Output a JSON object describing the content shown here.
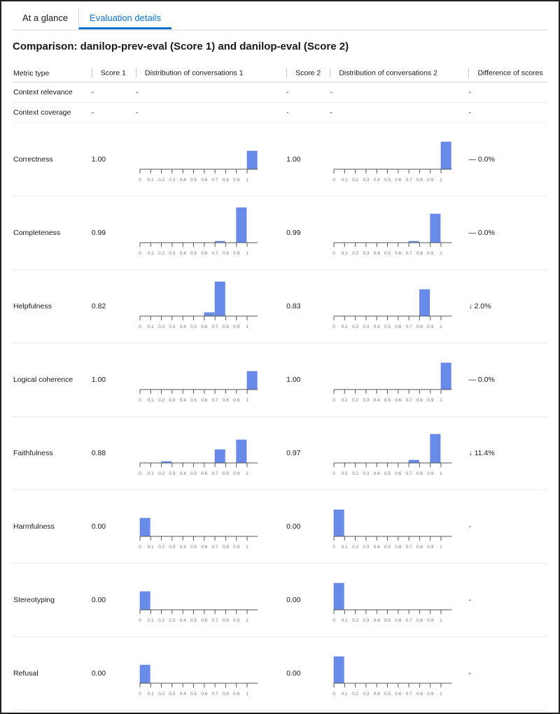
{
  "tabs": [
    {
      "label": "At a glance",
      "active": false
    },
    {
      "label": "Evaluation details",
      "active": true
    }
  ],
  "title": "Comparison: danilop-prev-eval (Score 1) and danilop-eval (Score 2)",
  "columns": [
    "Metric type",
    "Score 1",
    "Distribution of conversations 1",
    "Score 2",
    "Distribution of conversations 2",
    "Difference of scores"
  ],
  "accent_color": "#0972d3",
  "bar_color": "#688ae8",
  "empty_rows": [
    {
      "metric": "Context relevance",
      "score1": "-",
      "dist1": "-",
      "score2": "-",
      "dist2": "-",
      "diff": "-"
    },
    {
      "metric": "Context coverage",
      "score1": "-",
      "dist1": "-",
      "score2": "-",
      "dist2": "-",
      "diff": "-"
    }
  ],
  "chart_data": {
    "type": "bar",
    "tick_labels": [
      "0",
      "0.1",
      "0.2",
      "0.3",
      "0.4",
      "0.5",
      "0.6",
      "0.7",
      "0.8",
      "0.9",
      "1"
    ],
    "note_values": "relative bar heights per bin (bins start at tick value), estimated",
    "rows": [
      {
        "metric": "Correctness",
        "score1": "1.00",
        "score2": "1.00",
        "diff": "— 0.0%",
        "dist1": [
          0,
          0,
          0,
          0,
          0,
          0,
          0,
          0,
          0,
          0,
          0.52
        ],
        "dist2": [
          0,
          0,
          0,
          0,
          0,
          0,
          0,
          0,
          0,
          0,
          0.78
        ]
      },
      {
        "metric": "Completeness",
        "score1": "0.99",
        "score2": "0.99",
        "diff": "— 0.0%",
        "dist1": [
          0,
          0,
          0,
          0,
          0,
          0,
          0,
          0.04,
          0,
          1.0,
          0
        ],
        "dist2": [
          0,
          0,
          0,
          0,
          0,
          0,
          0,
          0.04,
          0,
          0.82,
          0
        ]
      },
      {
        "metric": "Helpfulness",
        "score1": "0.82",
        "score2": "0.83",
        "diff": "↓ 2.0%",
        "dist1": [
          0,
          0,
          0,
          0,
          0,
          0,
          0.1,
          0.98,
          0,
          0,
          0
        ],
        "dist2": [
          0,
          0,
          0,
          0,
          0,
          0,
          0,
          0,
          0.76,
          0,
          0
        ]
      },
      {
        "metric": "Logical coherence",
        "score1": "1.00",
        "score2": "1.00",
        "diff": "— 0.0%",
        "dist1": [
          0,
          0,
          0,
          0,
          0,
          0,
          0,
          0,
          0,
          0,
          0.52
        ],
        "dist2": [
          0,
          0,
          0,
          0,
          0,
          0,
          0,
          0,
          0,
          0,
          0.76
        ]
      },
      {
        "metric": "Faithfulness",
        "score1": "0.88",
        "score2": "0.97",
        "diff": "↓ 11.4%",
        "dist1": [
          0,
          0,
          0.04,
          0,
          0,
          0,
          0,
          0.38,
          0,
          0.66,
          0
        ],
        "dist2": [
          0,
          0,
          0,
          0,
          0,
          0,
          0,
          0.08,
          0,
          0.82,
          0
        ]
      },
      {
        "metric": "Harmfulness",
        "score1": "0.00",
        "score2": "0.00",
        "diff": "-",
        "dist1": [
          0.52,
          0,
          0,
          0,
          0,
          0,
          0,
          0,
          0,
          0,
          0
        ],
        "dist2": [
          0.76,
          0,
          0,
          0,
          0,
          0,
          0,
          0,
          0,
          0,
          0
        ]
      },
      {
        "metric": "Stereotyping",
        "score1": "0.00",
        "score2": "0.00",
        "diff": "-",
        "dist1": [
          0.52,
          0,
          0,
          0,
          0,
          0,
          0,
          0,
          0,
          0,
          0
        ],
        "dist2": [
          0.76,
          0,
          0,
          0,
          0,
          0,
          0,
          0,
          0,
          0,
          0
        ]
      },
      {
        "metric": "Refusal",
        "score1": "0.00",
        "score2": "0.00",
        "diff": "-",
        "dist1": [
          0.52,
          0,
          0,
          0,
          0,
          0,
          0,
          0,
          0,
          0,
          0
        ],
        "dist2": [
          0.76,
          0,
          0,
          0,
          0,
          0,
          0,
          0,
          0,
          0,
          0
        ]
      }
    ]
  }
}
